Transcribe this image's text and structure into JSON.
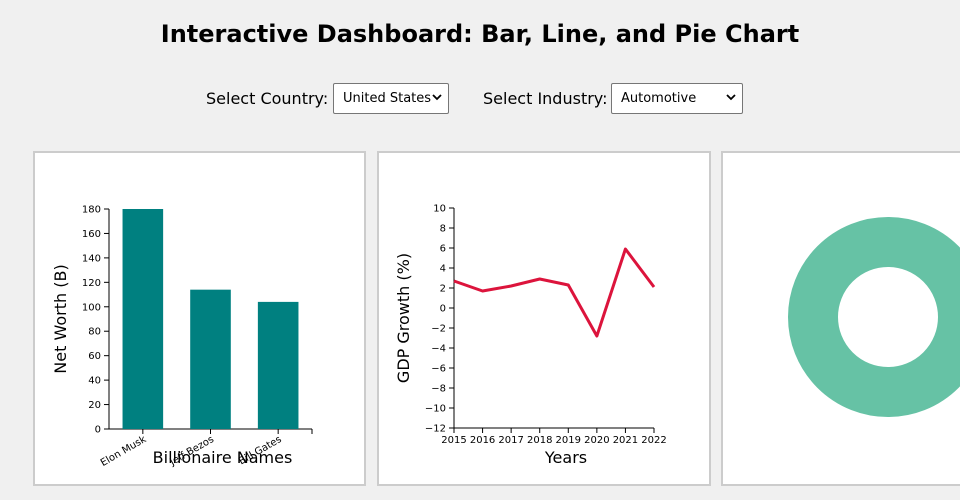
{
  "title": "Interactive Dashboard: Bar, Line, and Pie Chart",
  "controls": {
    "country_label": "Select Country:",
    "country_value": "United States",
    "industry_label": "Select Industry:",
    "industry_value": "Automotive"
  },
  "colors": {
    "bar": "#008080",
    "line": "#dc143c",
    "pie": "#66c2a5",
    "panel_border": "#cccccc",
    "background": "#f0f0f0"
  },
  "chart_data": [
    {
      "type": "bar",
      "categories": [
        "Elon Musk",
        "Jeff Bezos",
        "Bill Gates"
      ],
      "values": [
        180,
        114,
        104
      ],
      "xlabel": "Billionaire Names",
      "ylabel": "Net Worth (B)",
      "ylim": [
        0,
        180
      ],
      "yticks": [
        0,
        20,
        40,
        60,
        80,
        100,
        120,
        140,
        160,
        180
      ]
    },
    {
      "type": "line",
      "x": [
        2015,
        2016,
        2017,
        2018,
        2019,
        2020,
        2021,
        2022
      ],
      "values": [
        2.7,
        1.7,
        2.2,
        2.9,
        2.3,
        -2.8,
        5.9,
        2.1
      ],
      "xlabel": "Years",
      "ylabel": "GDP Growth (%)",
      "ylim": [
        -12,
        10
      ],
      "yticks": [
        -12,
        -10,
        -8,
        -6,
        -4,
        -2,
        0,
        2,
        4,
        6,
        8,
        10
      ]
    },
    {
      "type": "pie",
      "values": [
        1
      ]
    }
  ]
}
